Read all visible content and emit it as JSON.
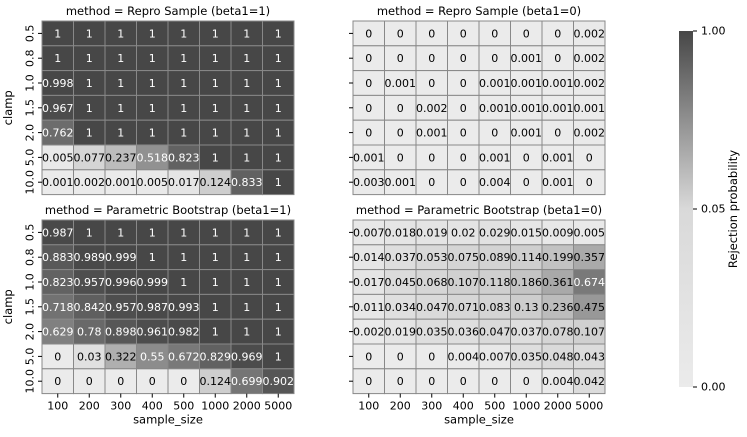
{
  "chart_data": {
    "type": "heatmap",
    "x_tick_labels": [
      "100",
      "200",
      "300",
      "400",
      "500",
      "1000",
      "2000",
      "5000"
    ],
    "y_tick_labels": [
      "0.5",
      "0.8",
      "1.0",
      "1.5",
      "2.0",
      "5.0",
      "10.0"
    ],
    "xlabel": "sample_size",
    "ylabel": "clamp",
    "colorbar": {
      "label": "Rejection probability",
      "ticks": [
        "0.00",
        "0.05",
        "1.00"
      ],
      "low_color": "#ebebeb",
      "high_color": "#474747",
      "scale": "piecewise-linear (0 → 0.05 → 1)"
    },
    "panels": [
      {
        "title": "method = Repro Sample (beta1=1)",
        "values": [
          [
            "1",
            "1",
            "1",
            "1",
            "1",
            "1",
            "1",
            "1"
          ],
          [
            "1",
            "1",
            "1",
            "1",
            "1",
            "1",
            "1",
            "1"
          ],
          [
            "0.998",
            "1",
            "1",
            "1",
            "1",
            "1",
            "1",
            "1"
          ],
          [
            "0.967",
            "1",
            "1",
            "1",
            "1",
            "1",
            "1",
            "1"
          ],
          [
            "0.762",
            "1",
            "1",
            "1",
            "1",
            "1",
            "1",
            "1"
          ],
          [
            "0.005",
            "0.077",
            "0.237",
            "0.518",
            "0.823",
            "1",
            "1",
            "1"
          ],
          [
            "0.001",
            "0.002",
            "0.001",
            "0.005",
            "0.017",
            "0.124",
            "0.833",
            "1"
          ]
        ]
      },
      {
        "title": "method = Repro Sample (beta1=0)",
        "values": [
          [
            "0",
            "0",
            "0",
            "0",
            "0",
            "0",
            "0",
            "0.002"
          ],
          [
            "0",
            "0",
            "0",
            "0",
            "0",
            "0.001",
            "0",
            "0.002"
          ],
          [
            "0",
            "0.001",
            "0",
            "0",
            "0.001",
            "0.001",
            "0.001",
            "0.002"
          ],
          [
            "0",
            "0",
            "0.002",
            "0",
            "0.001",
            "0.001",
            "0.001",
            "0.001"
          ],
          [
            "0",
            "0",
            "0.001",
            "0",
            "0",
            "0.001",
            "0",
            "0.002"
          ],
          [
            "0.001",
            "0",
            "0",
            "0",
            "0.001",
            "0",
            "0.001",
            "0"
          ],
          [
            "0.003",
            "0.001",
            "0",
            "0",
            "0.004",
            "0",
            "0.001",
            "0"
          ]
        ]
      },
      {
        "title": "method = Parametric Bootstrap (beta1=1)",
        "values": [
          [
            "0.987",
            "1",
            "1",
            "1",
            "1",
            "1",
            "1",
            "1"
          ],
          [
            "0.883",
            "0.989",
            "0.999",
            "1",
            "1",
            "1",
            "1",
            "1"
          ],
          [
            "0.823",
            "0.957",
            "0.996",
            "0.999",
            "1",
            "1",
            "1",
            "1"
          ],
          [
            "0.718",
            "0.842",
            "0.957",
            "0.987",
            "0.993",
            "1",
            "1",
            "1"
          ],
          [
            "0.629",
            "0.78",
            "0.898",
            "0.961",
            "0.982",
            "1",
            "1",
            "1"
          ],
          [
            "0",
            "0.03",
            "0.322",
            "0.55",
            "0.672",
            "0.829",
            "0.969",
            "1"
          ],
          [
            "0",
            "0",
            "0",
            "0",
            "0",
            "0.124",
            "0.699",
            "0.902"
          ]
        ]
      },
      {
        "title": "method = Parametric Bootstrap (beta1=0)",
        "values": [
          [
            "0.007",
            "0.018",
            "0.019",
            "0.02",
            "0.029",
            "0.015",
            "0.009",
            "0.005"
          ],
          [
            "0.014",
            "0.037",
            "0.053",
            "0.075",
            "0.089",
            "0.114",
            "0.199",
            "0.357"
          ],
          [
            "0.017",
            "0.045",
            "0.068",
            "0.107",
            "0.118",
            "0.186",
            "0.361",
            "0.674"
          ],
          [
            "0.011",
            "0.034",
            "0.047",
            "0.071",
            "0.083",
            "0.13",
            "0.236",
            "0.475"
          ],
          [
            "0.002",
            "0.019",
            "0.035",
            "0.036",
            "0.047",
            "0.037",
            "0.078",
            "0.107"
          ],
          [
            "0",
            "0",
            "0",
            "0.004",
            "0.007",
            "0.035",
            "0.048",
            "0.043"
          ],
          [
            "0",
            "0",
            "0",
            "0",
            "0",
            "0",
            "0.004",
            "0.042"
          ]
        ]
      }
    ]
  }
}
